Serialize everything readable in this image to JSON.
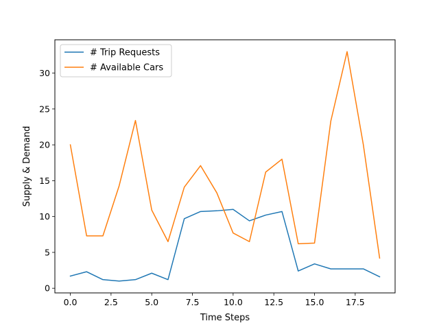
{
  "chart_data": {
    "type": "line",
    "title": "",
    "xlabel": "Time Steps",
    "ylabel": "Supply & Demand",
    "xlim": [
      -0.95,
      19.95
    ],
    "ylim": [
      -0.65,
      34.65
    ],
    "xticks": [
      0.0,
      2.5,
      5.0,
      7.5,
      10.0,
      12.5,
      15.0,
      17.5
    ],
    "xtick_labels": [
      "0.0",
      "2.5",
      "5.0",
      "7.5",
      "10.0",
      "12.5",
      "15.0",
      "17.5"
    ],
    "yticks": [
      0,
      5,
      10,
      15,
      20,
      25,
      30
    ],
    "ytick_labels": [
      "0",
      "5",
      "10",
      "15",
      "20",
      "25",
      "30"
    ],
    "grid": false,
    "legend_position": "top-left",
    "x": [
      0,
      1,
      2,
      3,
      4,
      5,
      6,
      7,
      8,
      9,
      10,
      11,
      12,
      13,
      14,
      15,
      16,
      17,
      18,
      19
    ],
    "series": [
      {
        "name": "# Trip Requests",
        "color": "#1f77b4",
        "values": [
          1.7,
          2.3,
          1.2,
          1.0,
          1.2,
          2.1,
          1.2,
          9.7,
          10.7,
          10.8,
          11.0,
          9.4,
          10.2,
          10.7,
          2.4,
          3.4,
          2.7,
          2.7,
          2.7,
          1.6
        ]
      },
      {
        "name": "# Available Cars",
        "color": "#ff7f0e",
        "values": [
          20.0,
          7.3,
          7.3,
          14.3,
          23.4,
          10.9,
          6.5,
          14.1,
          17.1,
          13.3,
          7.7,
          6.5,
          16.2,
          18.0,
          6.2,
          6.3,
          23.3,
          33.0,
          20.0,
          4.2
        ]
      }
    ]
  }
}
